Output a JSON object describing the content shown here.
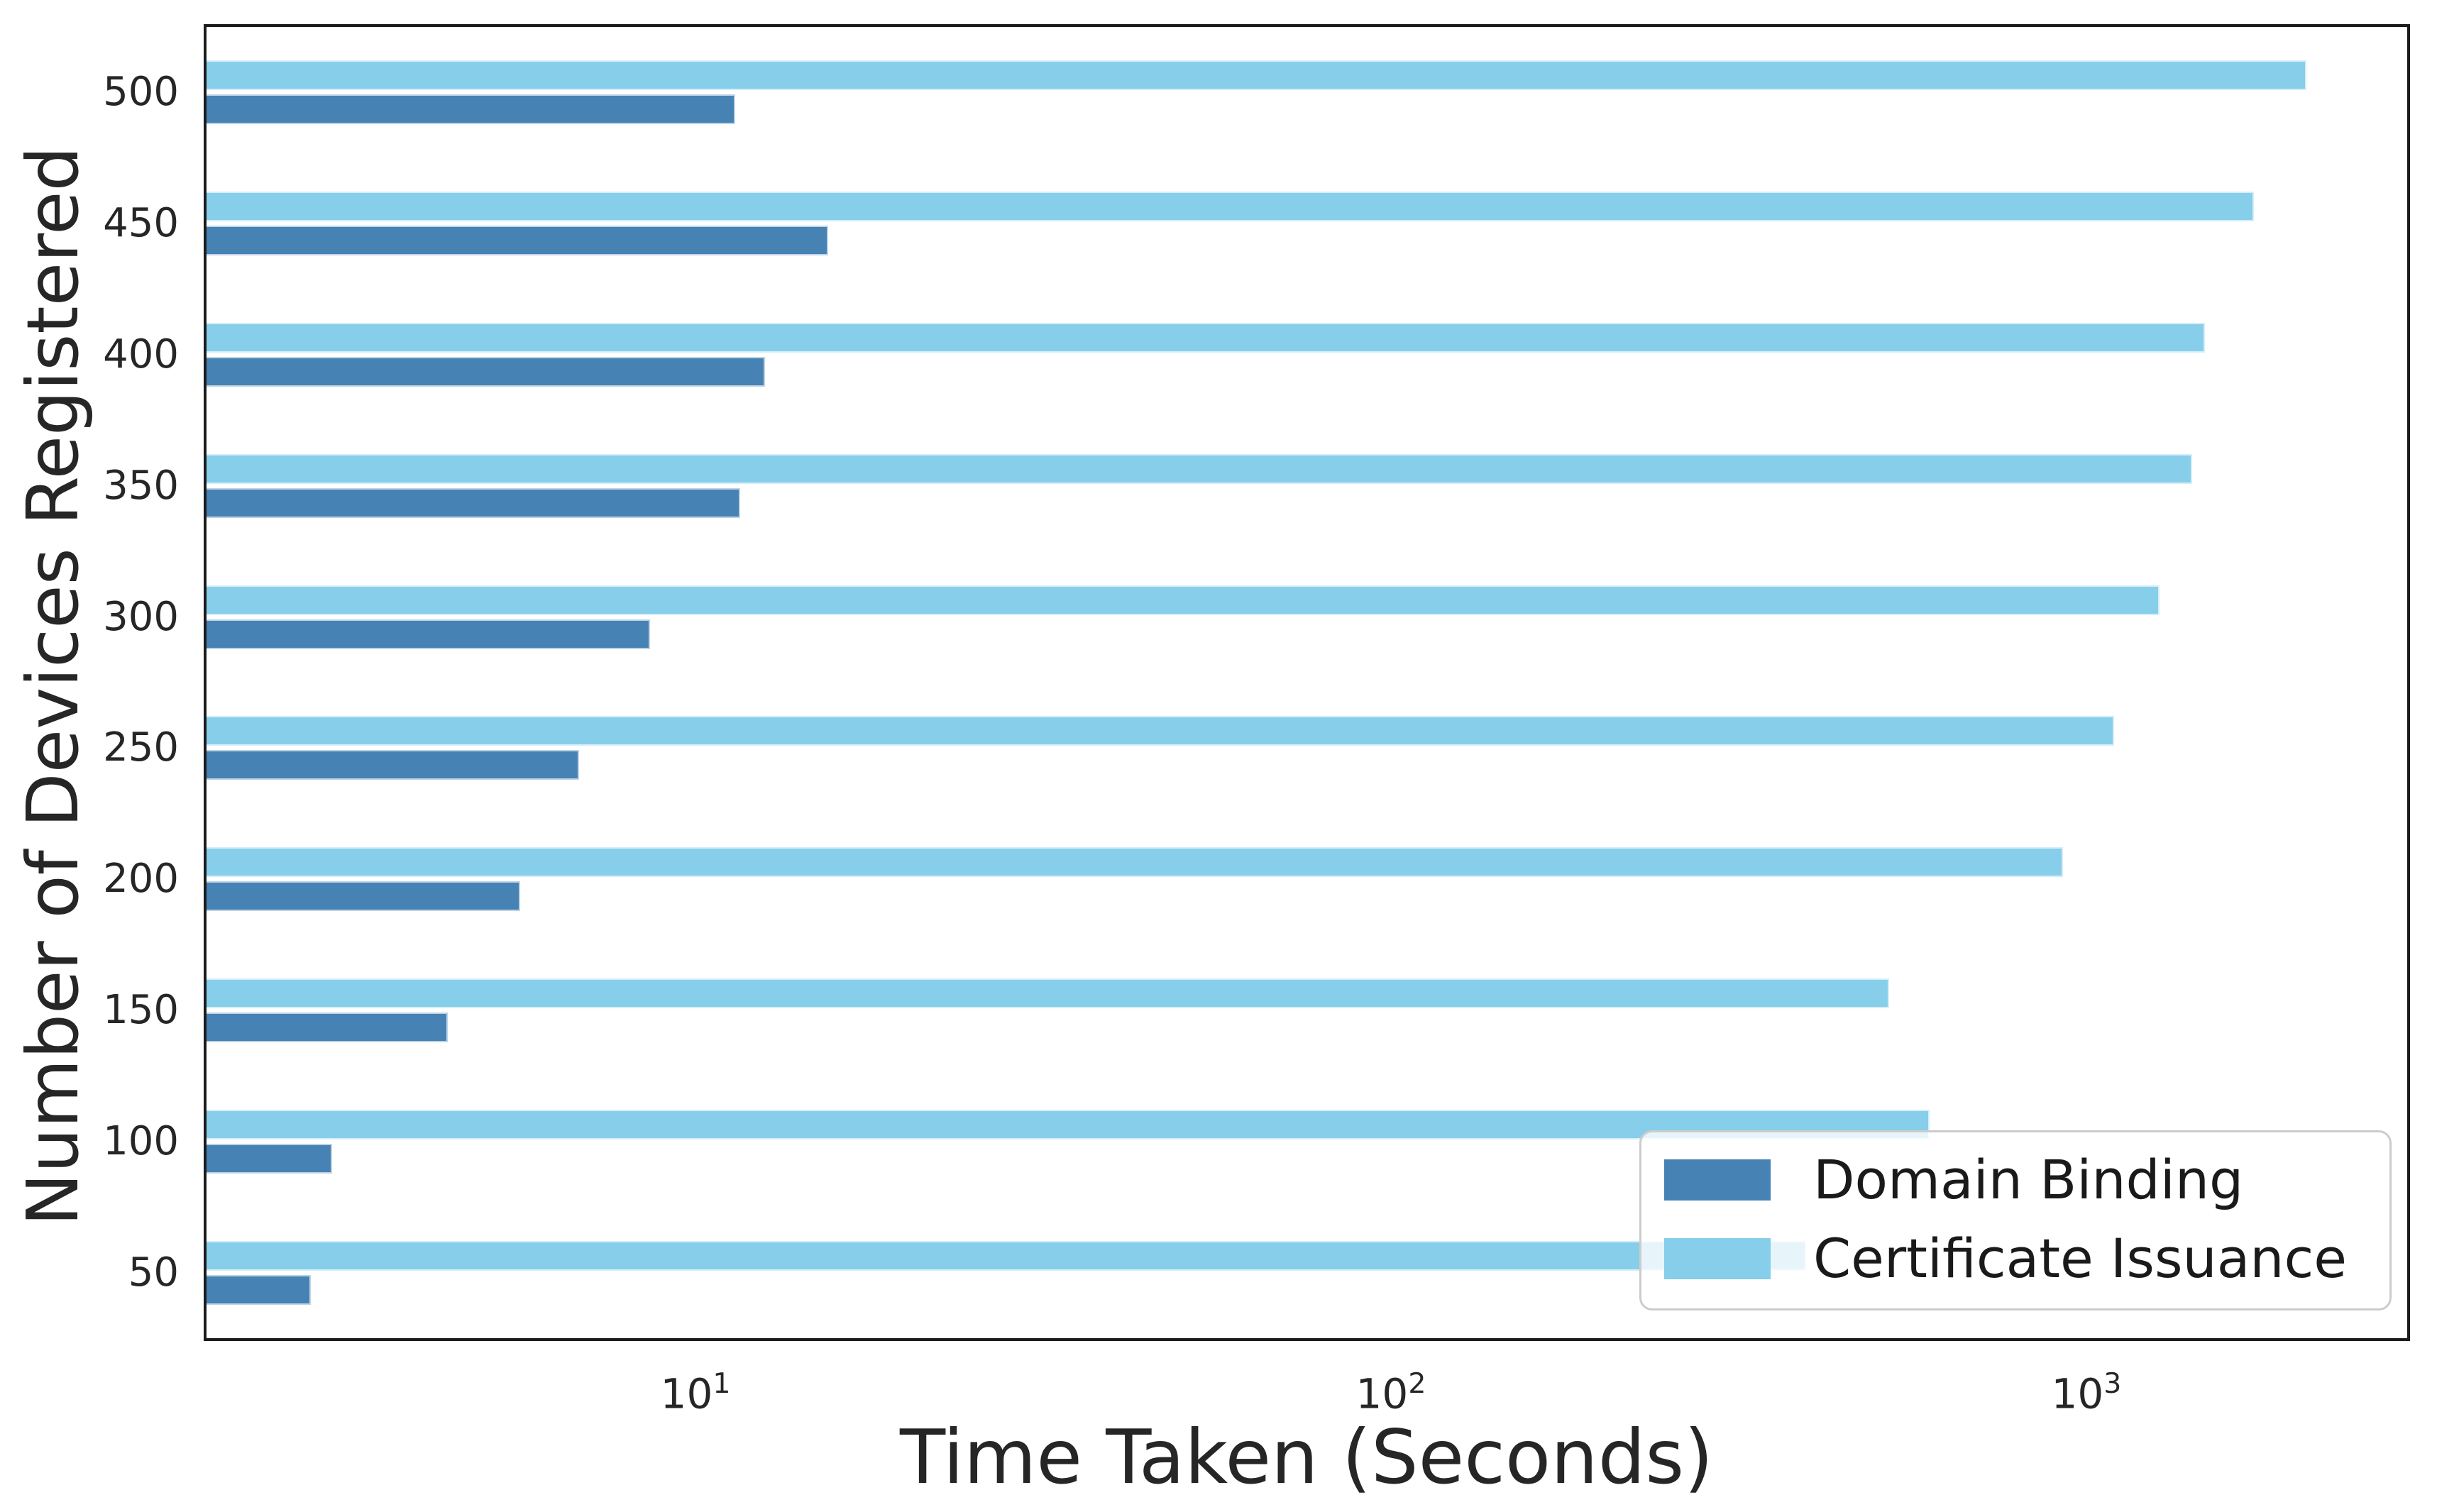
{
  "chart_data": {
    "type": "bar",
    "orientation": "horizontal",
    "x_scale": "log",
    "title": "",
    "xlabel": "Time Taken (Seconds)",
    "ylabel": "Number of Devices Registered",
    "categories": [
      50,
      100,
      150,
      200,
      250,
      300,
      350,
      400,
      450,
      500
    ],
    "series": [
      {
        "name": "Domain Binding",
        "color": "#4682B4",
        "values": [
          2.8,
          3.0,
          4.4,
          5.6,
          6.8,
          8.6,
          11.6,
          12.6,
          15.5,
          11.4
        ]
      },
      {
        "name": "Certificate Issuance",
        "color": "#87CEEB",
        "values": [
          395,
          595,
          520,
          925,
          1095,
          1275,
          1420,
          1480,
          1740,
          2070
        ]
      }
    ],
    "x_ticks": [
      10,
      100,
      1000
    ],
    "x_tick_labels": [
      "10^1",
      "10^2",
      "10^3"
    ],
    "xlim": [
      1.981,
      2893
    ],
    "legend_position": "lower right",
    "grid": false
  }
}
